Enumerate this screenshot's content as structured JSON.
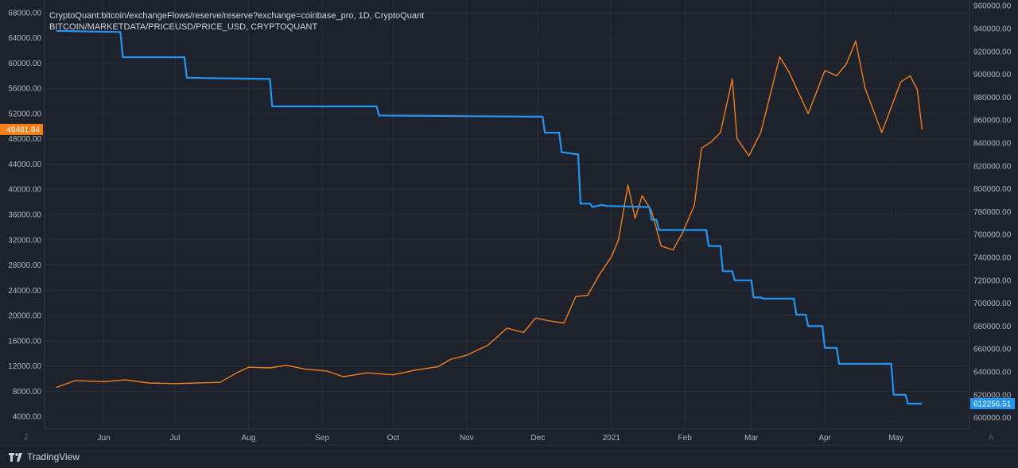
{
  "legend": {
    "line1": "CryptoQuant:bitcoin/exchangeFlows/reserve/reserve?exchange=coinbase_pro, 1D, CryptoQuant",
    "line2": "BITCOIN/MARKETDATA/PRICEUSD/PRICE_USD, CRYPTOQUANT"
  },
  "footer": {
    "brand": "TradingView"
  },
  "corner": {
    "left": "Z",
    "right": "A"
  },
  "colors": {
    "background": "#1e222d",
    "grid": "#2a2e39",
    "price": "#f57f17",
    "reserve": "#2196f3",
    "text": "#b2b5be"
  },
  "chart_data": {
    "type": "line",
    "x_ticks": [
      "Jun",
      "Jul",
      "Aug",
      "Sep",
      "Oct",
      "Nov",
      "Dec",
      "2021",
      "Feb",
      "Mar",
      "Apr",
      "May"
    ],
    "left_axis": {
      "ticks": [
        "4000.00",
        "8000.00",
        "12000.00",
        "16000.00",
        "20000.00",
        "24000.00",
        "28000.00",
        "32000.00",
        "36000.00",
        "40000.00",
        "44000.00",
        "48000.00",
        "52000.00",
        "56000.00",
        "60000.00",
        "64000.00",
        "68000.00"
      ],
      "ylim": [
        2000,
        70000
      ]
    },
    "right_axis": {
      "ticks": [
        "600000.00",
        "620000.00",
        "640000.00",
        "660000.00",
        "680000.00",
        "700000.00",
        "720000.00",
        "740000.00",
        "760000.00",
        "780000.00",
        "800000.00",
        "820000.00",
        "840000.00",
        "860000.00",
        "880000.00",
        "900000.00",
        "920000.00",
        "940000.00",
        "960000.00"
      ],
      "ylim": [
        590000,
        965000
      ]
    },
    "series": [
      {
        "name": "BITCOIN/MARKETDATA/PRICEUSD/PRICE_USD",
        "axis": "left",
        "color": "#f57f17",
        "last_label": "49481.84",
        "x": [
          "2020-05-12",
          "2020-05-20",
          "2020-06-01",
          "2020-06-10",
          "2020-06-20",
          "2020-07-01",
          "2020-07-10",
          "2020-07-20",
          "2020-07-27",
          "2020-08-01",
          "2020-08-10",
          "2020-08-17",
          "2020-08-25",
          "2020-09-03",
          "2020-09-10",
          "2020-09-20",
          "2020-10-01",
          "2020-10-10",
          "2020-10-20",
          "2020-10-25",
          "2020-11-01",
          "2020-11-10",
          "2020-11-18",
          "2020-11-25",
          "2020-11-30",
          "2020-12-05",
          "2020-12-12",
          "2020-12-17",
          "2020-12-22",
          "2020-12-27",
          "2021-01-01",
          "2021-01-04",
          "2021-01-08",
          "2021-01-11",
          "2021-01-14",
          "2021-01-18",
          "2021-01-22",
          "2021-01-27",
          "2021-01-31",
          "2021-02-05",
          "2021-02-08",
          "2021-02-12",
          "2021-02-16",
          "2021-02-21",
          "2021-02-23",
          "2021-02-28",
          "2021-03-05",
          "2021-03-13",
          "2021-03-17",
          "2021-03-25",
          "2021-04-01",
          "2021-04-06",
          "2021-04-10",
          "2021-04-14",
          "2021-04-18",
          "2021-04-25",
          "2021-05-03",
          "2021-05-07",
          "2021-05-10",
          "2021-05-12"
        ],
        "y": [
          8600,
          9700,
          9500,
          9800,
          9300,
          9200,
          9300,
          9400,
          10900,
          11800,
          11700,
          12100,
          11500,
          11200,
          10300,
          10900,
          10600,
          11300,
          11900,
          13000,
          13700,
          15300,
          18000,
          17300,
          19600,
          19200,
          18800,
          23000,
          23200,
          26500,
          29300,
          32000,
          40700,
          35400,
          39000,
          36500,
          31000,
          30400,
          33100,
          37500,
          46500,
          47500,
          49000,
          57500,
          48000,
          45300,
          49000,
          61000,
          58500,
          52000,
          58800,
          58000,
          59800,
          63500,
          56000,
          49000,
          57000,
          58000,
          55800,
          49481.84
        ]
      },
      {
        "name": "CryptoQuant:bitcoin/exchangeFlows/reserve/reserve?exchange=coinbase_pro",
        "axis": "right",
        "color": "#2196f3",
        "last_label": "612256.51",
        "x": [
          "2020-05-12",
          "2020-06-08",
          "2020-06-09",
          "2020-07-05",
          "2020-07-06",
          "2020-08-10",
          "2020-08-11",
          "2020-09-24",
          "2020-09-25",
          "2020-12-03",
          "2020-12-04",
          "2020-12-10",
          "2020-12-11",
          "2020-12-18",
          "2020-12-19",
          "2020-12-23",
          "2020-12-24",
          "2020-12-28",
          "2020-12-30",
          "2021-01-17",
          "2021-01-18",
          "2021-01-20",
          "2021-01-21",
          "2021-02-10",
          "2021-02-11",
          "2021-02-16",
          "2021-02-17",
          "2021-02-21",
          "2021-02-22",
          "2021-03-01",
          "2021-03-02",
          "2021-03-05",
          "2021-03-06",
          "2021-03-19",
          "2021-03-20",
          "2021-03-24",
          "2021-03-25",
          "2021-03-31",
          "2021-04-01",
          "2021-04-06",
          "2021-04-07",
          "2021-04-29",
          "2021-04-30",
          "2021-05-05",
          "2021-05-06",
          "2021-05-12"
        ],
        "y": [
          938000,
          937000,
          915000,
          915000,
          897000,
          896000,
          872000,
          872000,
          864000,
          863000,
          849000,
          849000,
          832000,
          830000,
          787000,
          787000,
          784000,
          786000,
          785000,
          784000,
          773000,
          773000,
          764000,
          764000,
          750000,
          750000,
          728000,
          728000,
          720000,
          720000,
          705000,
          705000,
          704000,
          704000,
          690000,
          690000,
          680000,
          680000,
          661000,
          661000,
          647000,
          647000,
          620000,
          620000,
          612256.51,
          612256.51
        ]
      }
    ],
    "grid": true
  }
}
